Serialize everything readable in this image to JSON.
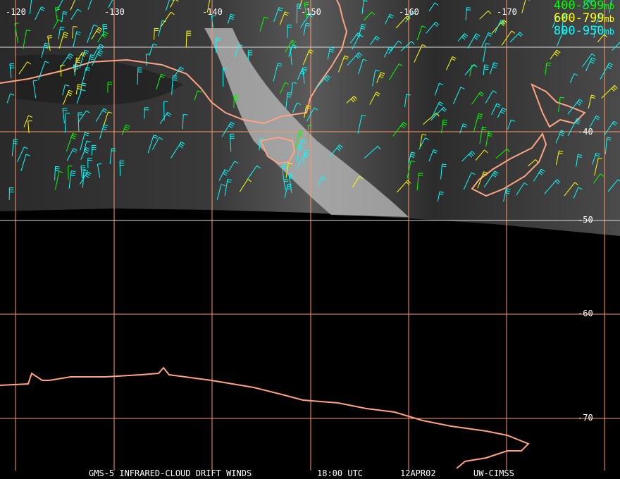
{
  "map": {
    "title": "GMS-5 INFRARED-CLOUD DRIFT WINDS",
    "time": "18:00 UTC",
    "date": "12APR02",
    "source": "UW-CIMSS",
    "longitude_labels": [
      "-120",
      "-130",
      "-140",
      "-150",
      "-160",
      "-170"
    ],
    "latitude_labels": [
      "-40",
      "-50",
      "-60",
      "-70"
    ],
    "legend": [
      {
        "range": "400-599",
        "unit": "mb",
        "color": "#00ff00"
      },
      {
        "range": "600-799",
        "unit": "mb",
        "color": "#ffff00"
      },
      {
        "range": "800-950",
        "unit": "mb",
        "color": "#00ffff"
      }
    ],
    "colors": {
      "coastline": "#ffa383",
      "grid_orange": "#ff9966",
      "grid_white": "#dddddd"
    }
  }
}
